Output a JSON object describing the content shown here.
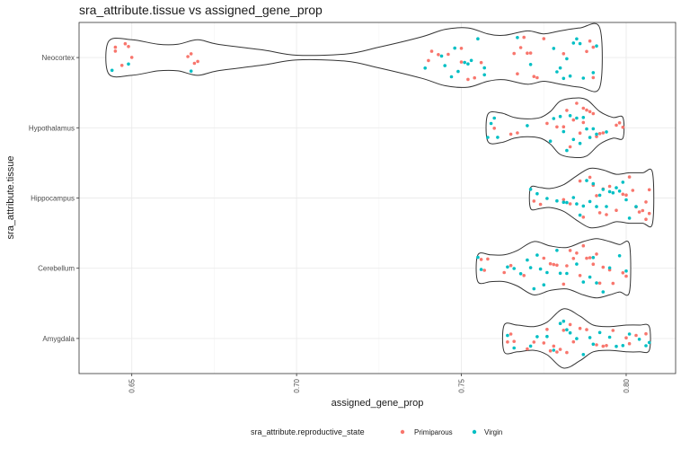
{
  "chart_data": {
    "type": "violin",
    "title": "sra_attribute.tissue vs assigned_gene_prop",
    "xlabel": "assigned_gene_prop",
    "ylabel": "sra_attribute.tissue",
    "xlim": [
      0.634,
      0.815
    ],
    "x_ticks": [
      0.65,
      0.7,
      0.75,
      0.8
    ],
    "x_tick_labels": [
      "0.65",
      "0.70",
      "0.75",
      "0.80"
    ],
    "categories": [
      "Amygdala",
      "Cerebellum",
      "Hippocampus",
      "Hypothalamus",
      "Neocortex"
    ],
    "grid": true,
    "legend": {
      "title": "sra_attribute.reproductive_state",
      "position": "bottom",
      "entries": [
        {
          "label": "Primiparous",
          "color": "#F8766D"
        },
        {
          "label": "Virgin",
          "color": "#00BFC4"
        }
      ]
    },
    "violins": {
      "Neocortex": {
        "range": [
          0.643,
          0.792
        ],
        "density": [
          [
            0.643,
            0.55
          ],
          [
            0.65,
            0.6
          ],
          [
            0.658,
            0.45
          ],
          [
            0.664,
            0.45
          ],
          [
            0.67,
            0.6
          ],
          [
            0.676,
            0.45
          ],
          [
            0.69,
            0.25
          ],
          [
            0.7,
            0.08
          ],
          [
            0.715,
            0.12
          ],
          [
            0.725,
            0.35
          ],
          [
            0.738,
            0.7
          ],
          [
            0.745,
            0.95
          ],
          [
            0.752,
            1.0
          ],
          [
            0.758,
            0.8
          ],
          [
            0.763,
            0.75
          ],
          [
            0.77,
            0.9
          ],
          [
            0.775,
            0.8
          ],
          [
            0.78,
            0.9
          ],
          [
            0.786,
            1.0
          ],
          [
            0.792,
            1.0
          ]
        ]
      },
      "Hypothalamus": {
        "range": [
          0.758,
          0.799
        ],
        "density": [
          [
            0.758,
            0.45
          ],
          [
            0.762,
            0.5
          ],
          [
            0.766,
            0.35
          ],
          [
            0.77,
            0.3
          ],
          [
            0.774,
            0.35
          ],
          [
            0.777,
            0.55
          ],
          [
            0.78,
            0.9
          ],
          [
            0.784,
            1.0
          ],
          [
            0.788,
            0.95
          ],
          [
            0.792,
            0.55
          ],
          [
            0.796,
            0.35
          ],
          [
            0.799,
            0.35
          ]
        ]
      },
      "Hippocampus": {
        "range": [
          0.771,
          0.808
        ],
        "density": [
          [
            0.771,
            0.35
          ],
          [
            0.774,
            0.35
          ],
          [
            0.777,
            0.32
          ],
          [
            0.781,
            0.45
          ],
          [
            0.785,
            0.75
          ],
          [
            0.789,
            1.0
          ],
          [
            0.793,
            0.95
          ],
          [
            0.797,
            0.8
          ],
          [
            0.801,
            0.85
          ],
          [
            0.805,
            0.85
          ],
          [
            0.808,
            0.85
          ]
        ]
      },
      "Cerebellum": {
        "range": [
          0.755,
          0.801
        ],
        "density": [
          [
            0.755,
            0.45
          ],
          [
            0.759,
            0.45
          ],
          [
            0.763,
            0.45
          ],
          [
            0.767,
            0.6
          ],
          [
            0.772,
            0.9
          ],
          [
            0.777,
            0.75
          ],
          [
            0.782,
            0.7
          ],
          [
            0.787,
            0.9
          ],
          [
            0.791,
            1.0
          ],
          [
            0.795,
            0.9
          ],
          [
            0.798,
            0.8
          ],
          [
            0.801,
            0.8
          ]
        ]
      },
      "Amygdala": {
        "range": [
          0.763,
          0.807
        ],
        "density": [
          [
            0.763,
            0.45
          ],
          [
            0.767,
            0.45
          ],
          [
            0.772,
            0.4
          ],
          [
            0.776,
            0.55
          ],
          [
            0.781,
            1.0
          ],
          [
            0.786,
            0.75
          ],
          [
            0.79,
            0.45
          ],
          [
            0.795,
            0.4
          ],
          [
            0.8,
            0.45
          ],
          [
            0.804,
            0.45
          ],
          [
            0.807,
            0.4
          ]
        ]
      }
    },
    "points": {
      "Neocortex": {
        "Primiparous": [
          0.645,
          0.645,
          0.647,
          0.648,
          0.649,
          0.65,
          0.667,
          0.668,
          0.669,
          0.67,
          0.74,
          0.741,
          0.743,
          0.746,
          0.75,
          0.75,
          0.752,
          0.754,
          0.756,
          0.766,
          0.767,
          0.768,
          0.769,
          0.77,
          0.771,
          0.772,
          0.773,
          0.775,
          0.781,
          0.788,
          0.789,
          0.79,
          0.79
        ],
        "Virgin": [
          0.644,
          0.649,
          0.668,
          0.739,
          0.744,
          0.745,
          0.747,
          0.748,
          0.749,
          0.751,
          0.752,
          0.753,
          0.755,
          0.757,
          0.757,
          0.767,
          0.771,
          0.778,
          0.779,
          0.78,
          0.781,
          0.782,
          0.783,
          0.784,
          0.785,
          0.786,
          0.787,
          0.79,
          0.791
        ]
      },
      "Hypothalamus": {
        "Primiparous": [
          0.76,
          0.765,
          0.767,
          0.776,
          0.779,
          0.781,
          0.782,
          0.783,
          0.784,
          0.785,
          0.786,
          0.787,
          0.787,
          0.788,
          0.789,
          0.79,
          0.791,
          0.792,
          0.793,
          0.797,
          0.798,
          0.799
        ],
        "Virgin": [
          0.758,
          0.759,
          0.76,
          0.761,
          0.77,
          0.777,
          0.778,
          0.78,
          0.781,
          0.782,
          0.783,
          0.784,
          0.785,
          0.786,
          0.787,
          0.788,
          0.789,
          0.79,
          0.791,
          0.794
        ]
      },
      "Hippocampus": {
        "Primiparous": [
          0.772,
          0.774,
          0.781,
          0.783,
          0.786,
          0.787,
          0.789,
          0.79,
          0.791,
          0.792,
          0.793,
          0.794,
          0.795,
          0.797,
          0.799,
          0.8,
          0.801,
          0.802,
          0.803,
          0.804,
          0.805,
          0.806,
          0.806,
          0.807,
          0.807
        ],
        "Virgin": [
          0.771,
          0.773,
          0.776,
          0.779,
          0.781,
          0.782,
          0.784,
          0.785,
          0.786,
          0.787,
          0.788,
          0.789,
          0.79,
          0.791,
          0.792,
          0.793,
          0.794,
          0.795,
          0.796,
          0.797,
          0.798,
          0.799,
          0.8,
          0.801,
          0.803
        ]
      },
      "Cerebellum": {
        "Primiparous": [
          0.756,
          0.757,
          0.758,
          0.763,
          0.765,
          0.769,
          0.775,
          0.777,
          0.778,
          0.779,
          0.781,
          0.782,
          0.783,
          0.784,
          0.785,
          0.786,
          0.787,
          0.788,
          0.789,
          0.79,
          0.791,
          0.792,
          0.793,
          0.795,
          0.796,
          0.799,
          0.8
        ],
        "Virgin": [
          0.755,
          0.756,
          0.764,
          0.766,
          0.768,
          0.77,
          0.771,
          0.772,
          0.773,
          0.774,
          0.775,
          0.776,
          0.779,
          0.78,
          0.782,
          0.785,
          0.787,
          0.789,
          0.79,
          0.791,
          0.793,
          0.795,
          0.798,
          0.8
        ]
      },
      "Amygdala": {
        "Primiparous": [
          0.764,
          0.765,
          0.766,
          0.77,
          0.772,
          0.775,
          0.776,
          0.777,
          0.778,
          0.779,
          0.78,
          0.781,
          0.782,
          0.783,
          0.784,
          0.786,
          0.788,
          0.791,
          0.793,
          0.794,
          0.796,
          0.8,
          0.801,
          0.803,
          0.806
        ],
        "Virgin": [
          0.764,
          0.766,
          0.771,
          0.773,
          0.776,
          0.778,
          0.78,
          0.781,
          0.782,
          0.783,
          0.785,
          0.787,
          0.789,
          0.79,
          0.792,
          0.795,
          0.797,
          0.799,
          0.801,
          0.804,
          0.806,
          0.807
        ]
      }
    }
  }
}
